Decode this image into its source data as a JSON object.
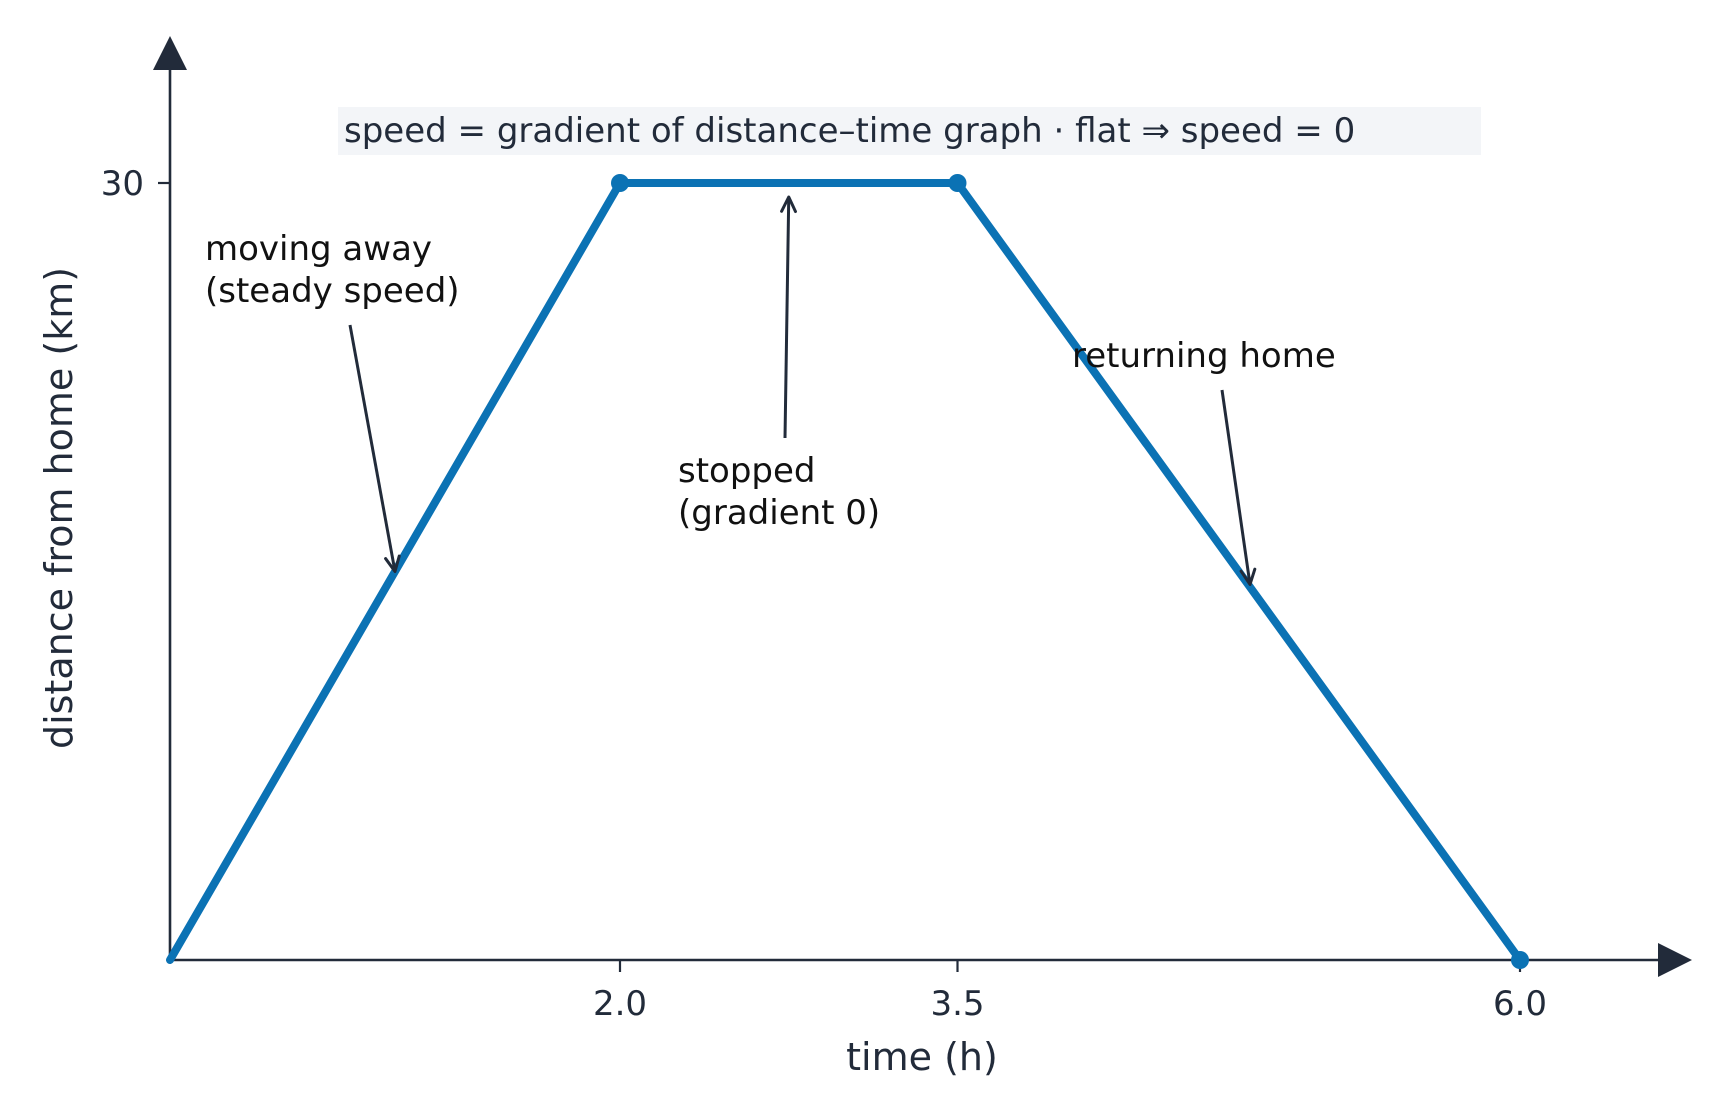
{
  "chart_data": {
    "type": "line",
    "xlabel": "time (h)",
    "ylabel": "distance from home (km)",
    "xlim": [
      0,
      6.6
    ],
    "ylim": [
      0,
      30
    ],
    "x_ticks": [
      2.0,
      3.5,
      6.0
    ],
    "x_tick_labels": [
      "2.0",
      "3.5",
      "6.0"
    ],
    "y_ticks": [
      30
    ],
    "y_tick_labels": [
      "30"
    ],
    "grid": false,
    "series": [
      {
        "x": [
          0,
          2.0,
          3.5,
          6.0
        ],
        "y": [
          0,
          30,
          30,
          0
        ],
        "color": "#0b72b4",
        "markers_at": [
          1,
          2,
          3
        ]
      }
    ],
    "banner": "speed = gradient of distance–time graph · flat ⇒ speed = 0",
    "annotations": [
      {
        "lines": [
          "moving away",
          "(steady speed)"
        ],
        "target": [
          1.0,
          15.0
        ]
      },
      {
        "lines": [
          "stopped",
          "(gradient 0)"
        ],
        "target": [
          2.75,
          30.0
        ]
      },
      {
        "lines": [
          "returning home"
        ],
        "target": [
          4.8,
          14.5
        ]
      }
    ],
    "colors": {
      "axis": "#222b3a",
      "series": "#0b72b4",
      "banner_bg": "#f3f5f8"
    }
  }
}
